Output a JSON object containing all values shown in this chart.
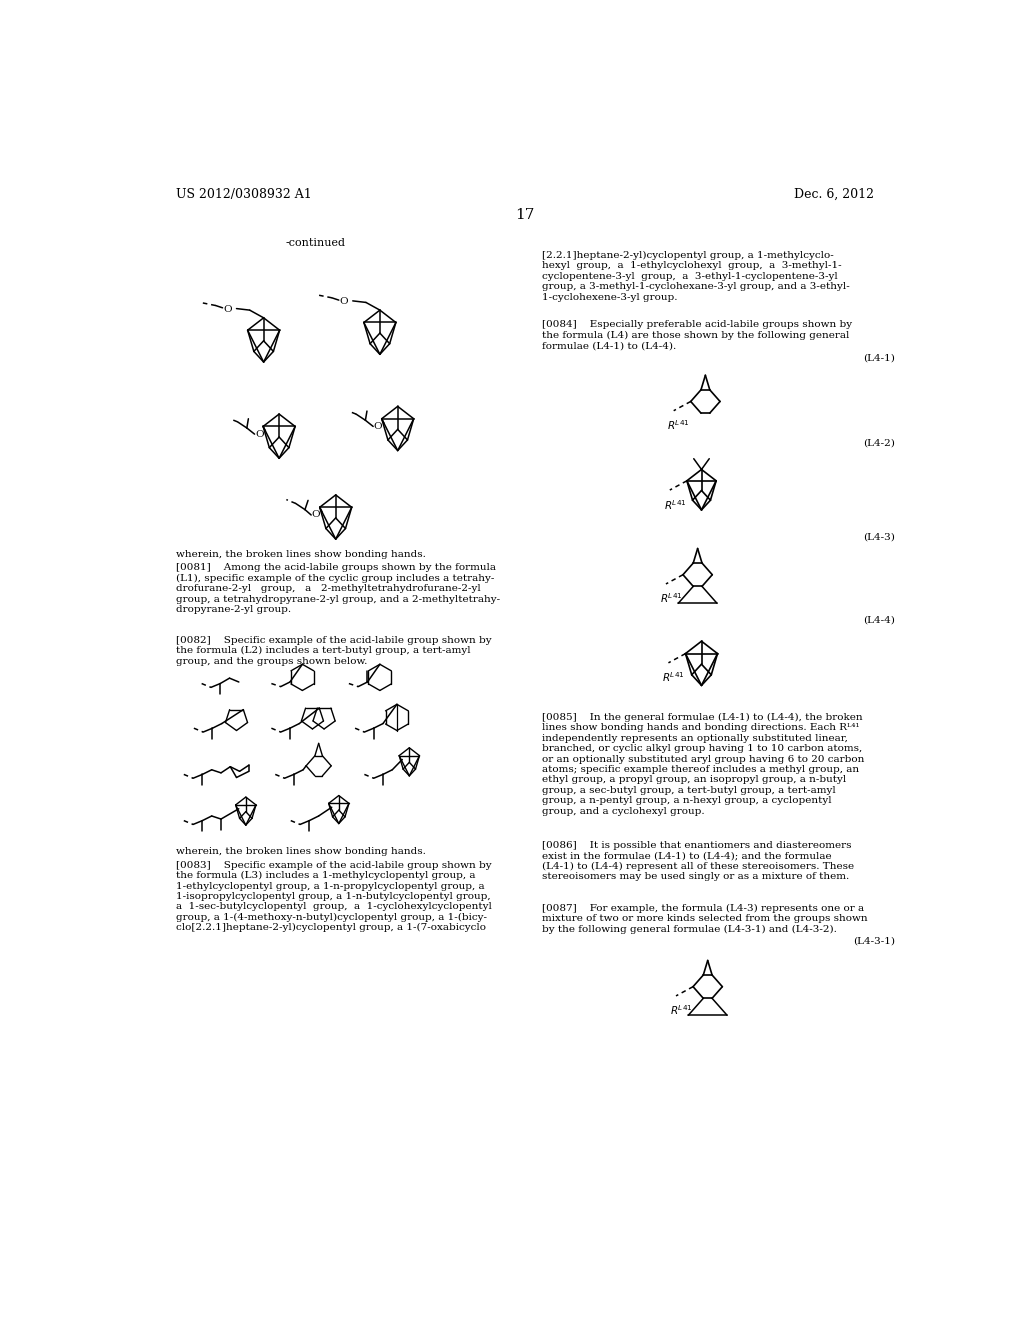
{
  "page_number": "17",
  "patent_number": "US 2012/0308932 A1",
  "date": "Dec. 6, 2012",
  "bg": "#ffffff"
}
